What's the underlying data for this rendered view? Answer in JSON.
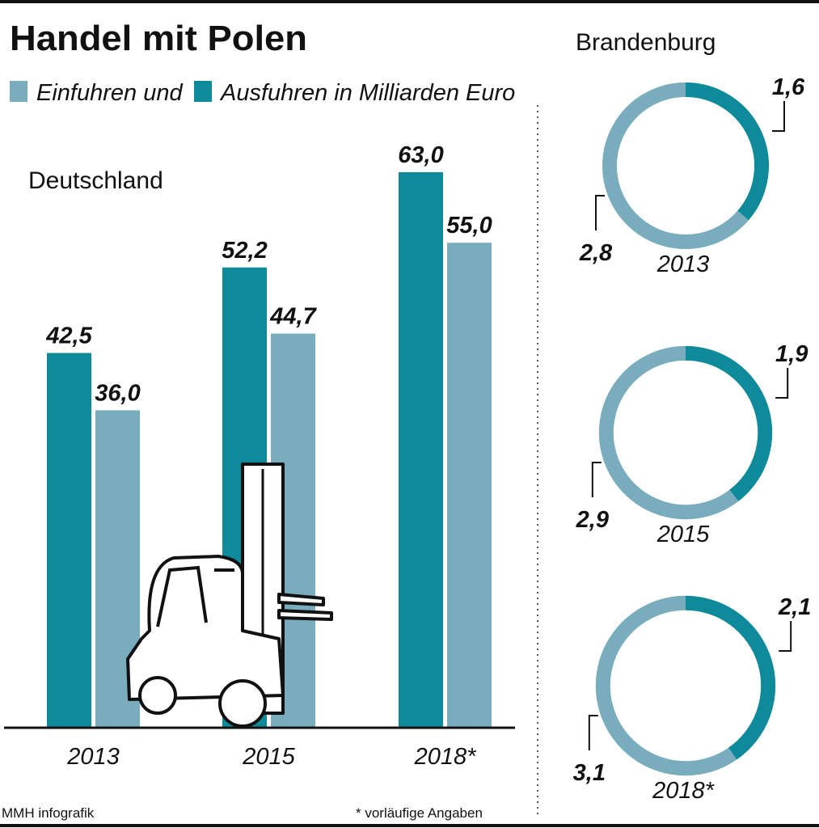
{
  "title": "Handel mit Polen",
  "source": "MMH infografik",
  "note": "* vorläufige Angaben",
  "chart_data": [
    {
      "type": "bar",
      "title": "Deutschland",
      "categories": [
        "2013",
        "2015",
        "2018*"
      ],
      "series": [
        {
          "name": "Einfuhren und",
          "color": "#79adbd",
          "values": [
            36.0,
            44.7,
            55.0
          ],
          "value_labels": [
            "36,0",
            "44,7",
            "55,0"
          ]
        },
        {
          "name": "Ausfuhren in Milliarden Euro",
          "color": "#0e8a9a",
          "values": [
            42.5,
            52.2,
            63.0
          ],
          "value_labels": [
            "42,5",
            "52,2",
            "63,0"
          ]
        }
      ]
    },
    {
      "type": "donut",
      "title": "Brandenburg",
      "categories": [
        "2013",
        "2015",
        "2018*"
      ],
      "series": [
        {
          "color": "#79adbd",
          "values": [
            2.8,
            2.9,
            3.1
          ],
          "value_labels": [
            "2,8",
            "2,9",
            "3,1"
          ]
        },
        {
          "color": "#0e8a9a",
          "values": [
            1.6,
            1.9,
            2.1
          ],
          "value_labels": [
            "1,6",
            "1,9",
            "2,1"
          ]
        }
      ]
    }
  ]
}
